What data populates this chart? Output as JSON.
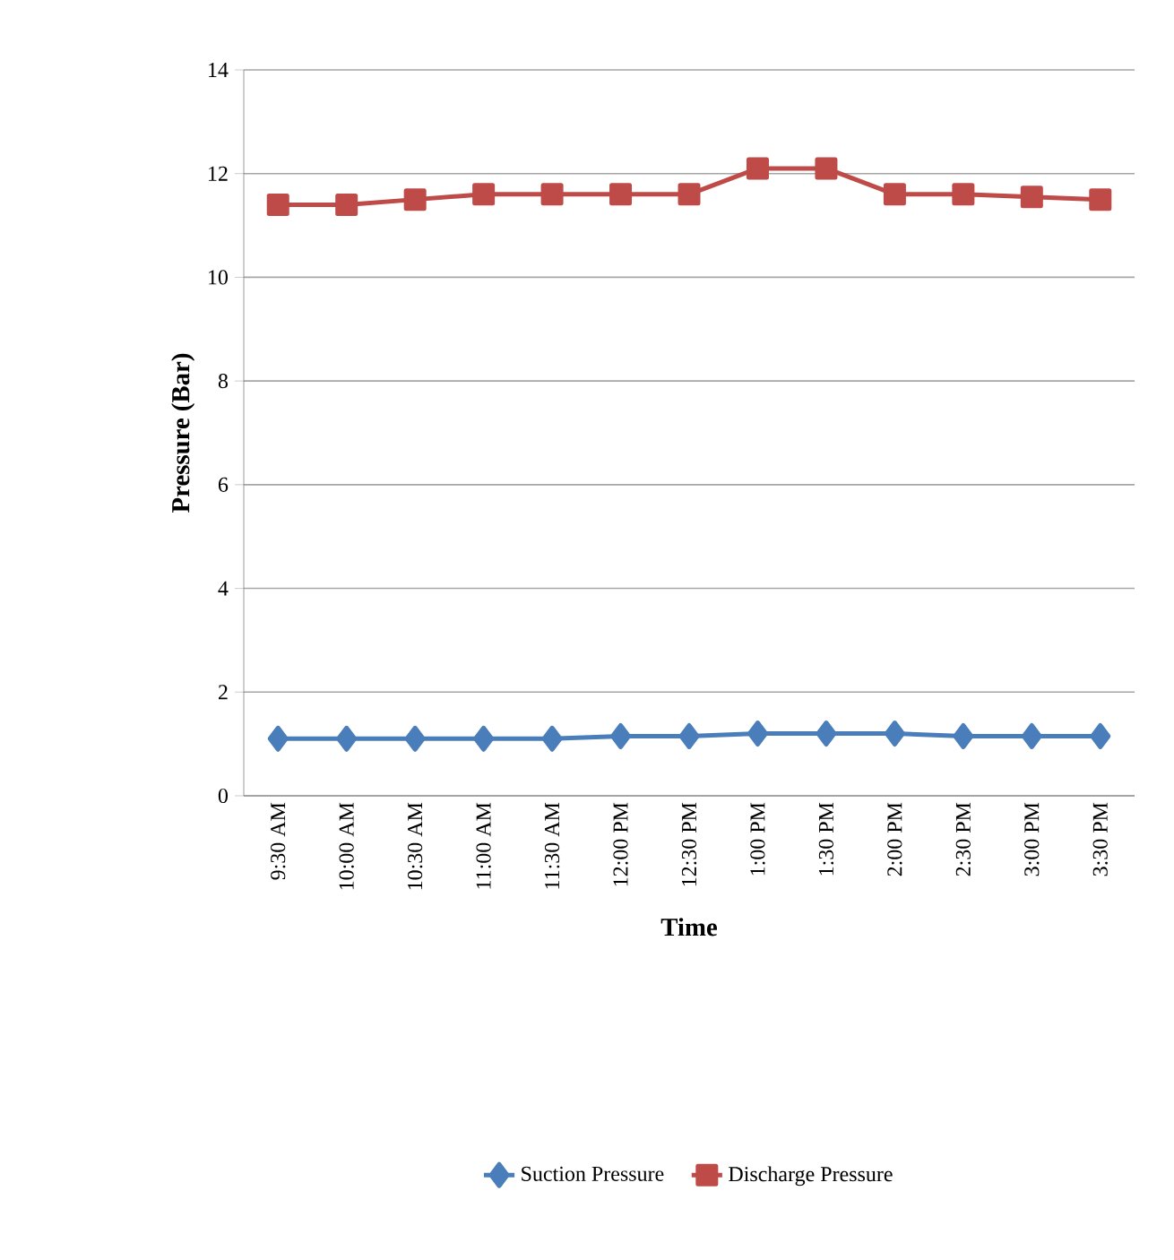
{
  "chart_data": {
    "type": "line",
    "xlabel": "Time",
    "ylabel": "Pressure (Bar)",
    "categories": [
      "9:30 AM",
      "10:00 AM",
      "10:30 AM",
      "11:00 AM",
      "11:30 AM",
      "12:00 PM",
      "12:30 PM",
      "1:00 PM",
      "1:30 PM",
      "2:00 PM",
      "2:30 PM",
      "3:00 PM",
      "3:30 PM"
    ],
    "series": [
      {
        "name": "Suction Pressure",
        "color": "#4a7ebb",
        "marker": "diamond",
        "values": [
          1.1,
          1.1,
          1.1,
          1.1,
          1.1,
          1.15,
          1.15,
          1.2,
          1.2,
          1.2,
          1.15,
          1.15,
          1.15
        ]
      },
      {
        "name": "Discharge Pressure",
        "color": "#be4b48",
        "marker": "square",
        "values": [
          11.4,
          11.4,
          11.5,
          11.6,
          11.6,
          11.6,
          11.6,
          12.1,
          12.1,
          11.6,
          11.6,
          11.55,
          11.5
        ]
      }
    ],
    "ylim": [
      0,
      14
    ],
    "yticks": [
      0,
      2,
      4,
      6,
      8,
      10,
      12,
      14
    ],
    "grid": "y",
    "legend": "bottom"
  }
}
